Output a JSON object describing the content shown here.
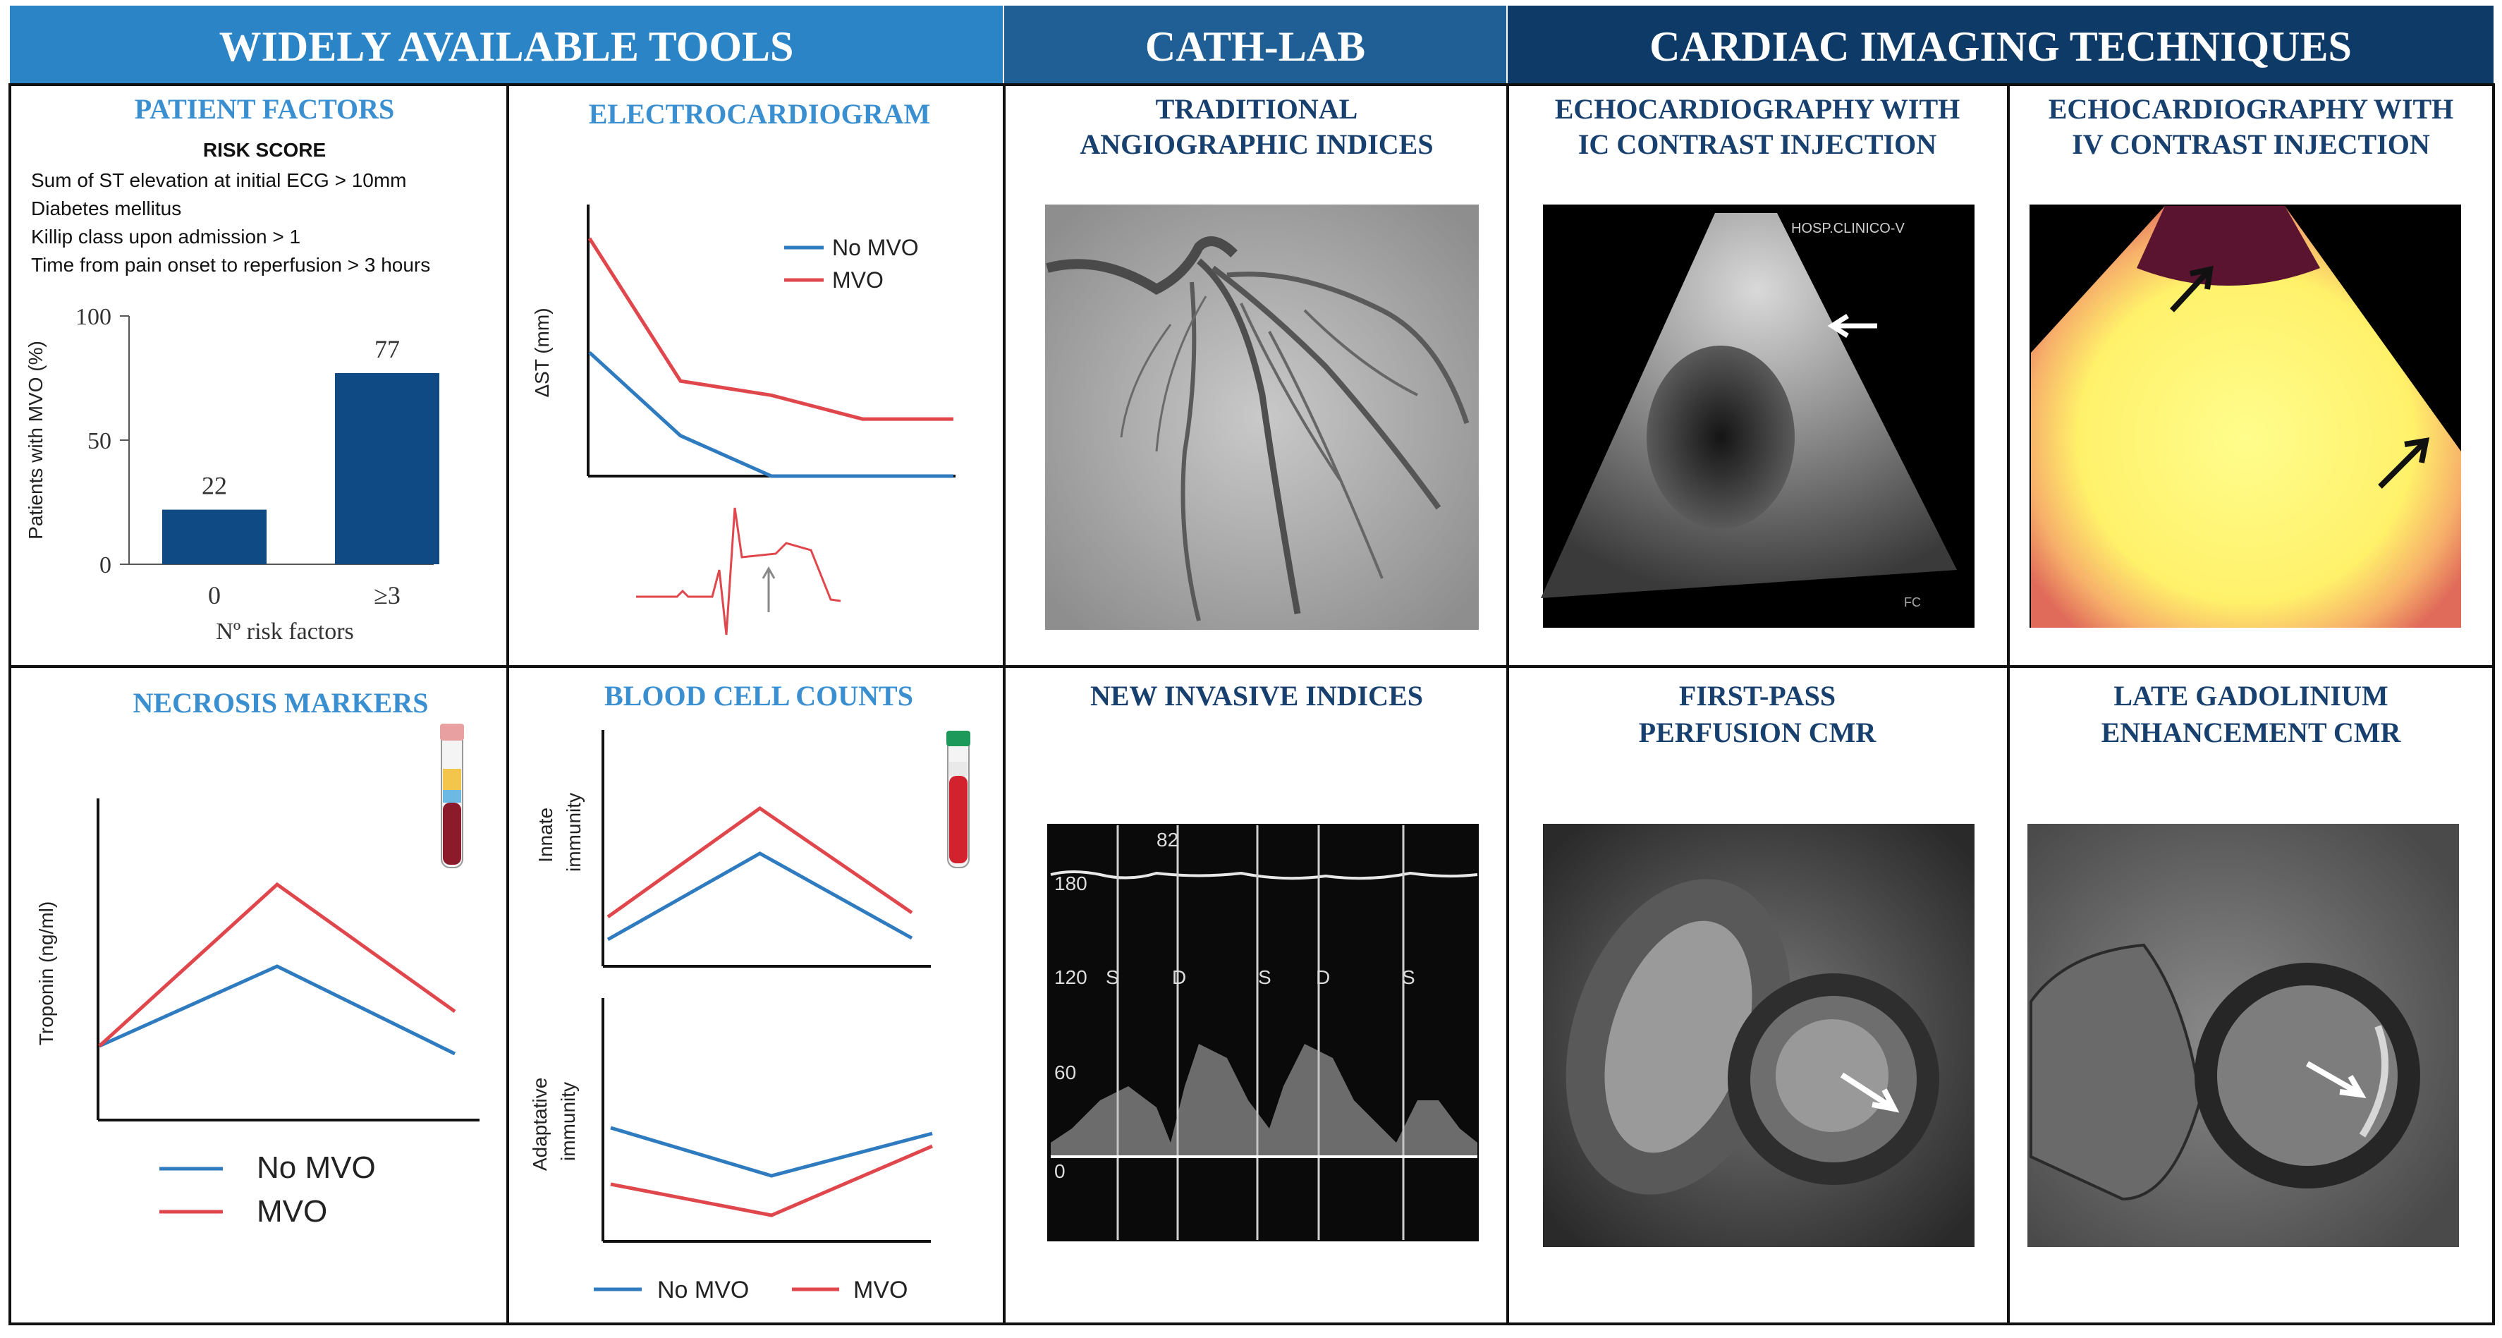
{
  "colors": {
    "banner1": "#2b84c6",
    "banner2": "#1f5f96",
    "banner3": "#0e3a67",
    "title_blue": "#3a8fd0",
    "title_navy": "#17406e",
    "bar": "#0f4a85",
    "no_mvo": "#2f7bbf",
    "mvo": "#e0474c",
    "border": "#111111"
  },
  "banners": [
    "WIDELY AVAILABLE TOOLS",
    "CATH-LAB",
    "CARDIAC IMAGING TECHNIQUES"
  ],
  "panels": {
    "patient_factors": {
      "title": "PATIENT FACTORS",
      "risk_heading": "RISK SCORE",
      "risk_items": [
        "Sum of ST elevation at initial ECG > 10mm",
        "Diabetes mellitus",
        "Killip  class upon admission > 1",
        "Time from pain onset to reperfusion > 3 hours"
      ]
    },
    "electrocardiogram": {
      "title": "ELECTROCARDIOGRAM"
    },
    "traditional": {
      "title_lines": [
        "TRADITIONAL",
        "ANGIOGRAPHIC INDICES"
      ]
    },
    "echo_ic": {
      "title_lines": [
        "ECHOCARDIOGRAPHY WITH",
        "IC CONTRAST INJECTION"
      ],
      "image_label": "HOSP.CLINICO-V",
      "corner_label": "FC"
    },
    "echo_iv": {
      "title_lines": [
        "ECHOCARDIOGRAPHY WITH",
        "IV CONTRAST INJECTION"
      ]
    },
    "necrosis": {
      "title": "NECROSIS MARKERS"
    },
    "blood_counts": {
      "title": "BLOOD CELL COUNTS"
    },
    "new_invasive": {
      "title": "NEW INVASIVE  INDICES"
    },
    "first_pass": {
      "title_lines": [
        "FIRST-PASS",
        "PERFUSION CMR"
      ]
    },
    "late_gad": {
      "title_lines": [
        "LATE GADOLINIUM",
        "ENHANCEMENT CMR"
      ]
    }
  },
  "chart_data": [
    {
      "id": "mvo_by_risk",
      "type": "bar",
      "categories": [
        "0",
        "≥3"
      ],
      "values": [
        22,
        77
      ],
      "data_labels": [
        "22",
        "77"
      ],
      "ylabel": "Patients with MVO (%)",
      "xlabel": "Nº risk factors",
      "ylim": [
        0,
        100
      ],
      "yticks": [
        "0",
        "50",
        "100"
      ]
    },
    {
      "id": "ecg_st",
      "type": "line",
      "ylabel": "ΔST (mm)",
      "x": [
        0,
        1,
        2,
        3,
        4
      ],
      "series": [
        {
          "name": "No MVO",
          "values": [
            5.2,
            1.7,
            0,
            0,
            0
          ]
        },
        {
          "name": "MVO",
          "values": [
            10,
            4,
            3.4,
            2.4,
            2.4
          ]
        }
      ]
    },
    {
      "id": "troponin",
      "type": "line",
      "ylabel": "Troponin (ng/ml)",
      "x": [
        0,
        1,
        2
      ],
      "series": [
        {
          "name": "No MVO",
          "values": [
            0.85,
            6.5,
            0.3
          ]
        },
        {
          "name": "MVO",
          "values": [
            0.85,
            12.3,
            3.3
          ]
        }
      ]
    },
    {
      "id": "innate",
      "type": "line",
      "ylabel": "Innate immunity",
      "x": [
        0,
        1,
        2
      ],
      "series": [
        {
          "name": "No MVO",
          "values": [
            1.4,
            7.5,
            1.5
          ]
        },
        {
          "name": "MVO",
          "values": [
            3.0,
            10.7,
            3.3
          ]
        }
      ]
    },
    {
      "id": "adaptive",
      "type": "line",
      "ylabel": "Adaptative immunity",
      "x": [
        0,
        1,
        2
      ],
      "series": [
        {
          "name": "No MVO",
          "values": [
            7.8,
            4.4,
            7.4
          ]
        },
        {
          "name": "MVO",
          "values": [
            3.8,
            1.6,
            6.5
          ]
        }
      ]
    }
  ],
  "legends": {
    "ecg": [
      "No MVO",
      "MVO"
    ],
    "necrosis": [
      "No MVO",
      "MVO"
    ],
    "blood": [
      "No MVO",
      "MVO"
    ]
  },
  "doppler": {
    "peak": "82",
    "scale": [
      "180",
      "120",
      "60",
      "0"
    ],
    "phases": [
      "S",
      "D",
      "S",
      "D",
      "S"
    ]
  }
}
